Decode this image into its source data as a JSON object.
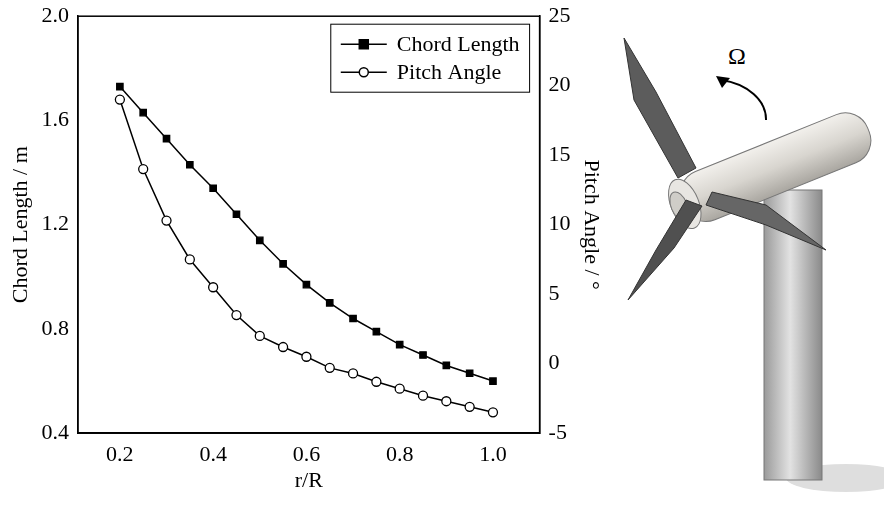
{
  "chart_data": {
    "type": "line",
    "x_label": "r/R",
    "y_label": "Chord Length / m",
    "y2_label": "Pitch Angle / °",
    "x": [
      0.2,
      0.25,
      0.3,
      0.35,
      0.4,
      0.45,
      0.5,
      0.55,
      0.6,
      0.65,
      0.7,
      0.75,
      0.8,
      0.85,
      0.9,
      0.95,
      1.0
    ],
    "series": [
      {
        "name": "Chord Length",
        "color": "#000000",
        "marker": "filled_square",
        "line_style": "solid",
        "values": [
          1.73,
          1.63,
          1.53,
          1.43,
          1.34,
          1.24,
          1.14,
          1.05,
          0.97,
          0.9,
          0.84,
          0.79,
          0.74,
          0.7,
          0.66,
          0.63,
          0.6
        ]
      },
      {
        "name": "Pitch Angle",
        "color": "#000000",
        "marker": "open_circle",
        "line_style": "solid",
        "axis": "y2",
        "values": [
          19.0,
          14.0,
          10.3,
          7.5,
          5.5,
          3.5,
          2.0,
          1.2,
          0.5,
          -0.3,
          -0.7,
          -1.3,
          -1.8,
          -2.3,
          -2.7,
          -3.1,
          -3.5
        ]
      }
    ],
    "xlim": [
      0.11,
      1.1
    ],
    "xticks": [
      0.2,
      0.4,
      0.6,
      0.8,
      {
        "value": 1,
        "label": "1.0"
      }
    ],
    "ylim": [
      0.4,
      2.0
    ],
    "yticks": [
      0.4,
      0.8,
      1.2,
      1.6,
      {
        "value": 2,
        "label": "2.0"
      }
    ],
    "y2lim": [
      -5,
      25
    ],
    "y2ticks": [
      -5,
      0,
      5,
      10,
      15,
      20,
      25
    ],
    "grid": false,
    "legend": "upper right",
    "illustration": {
      "rotation_label": "Ω"
    }
  }
}
